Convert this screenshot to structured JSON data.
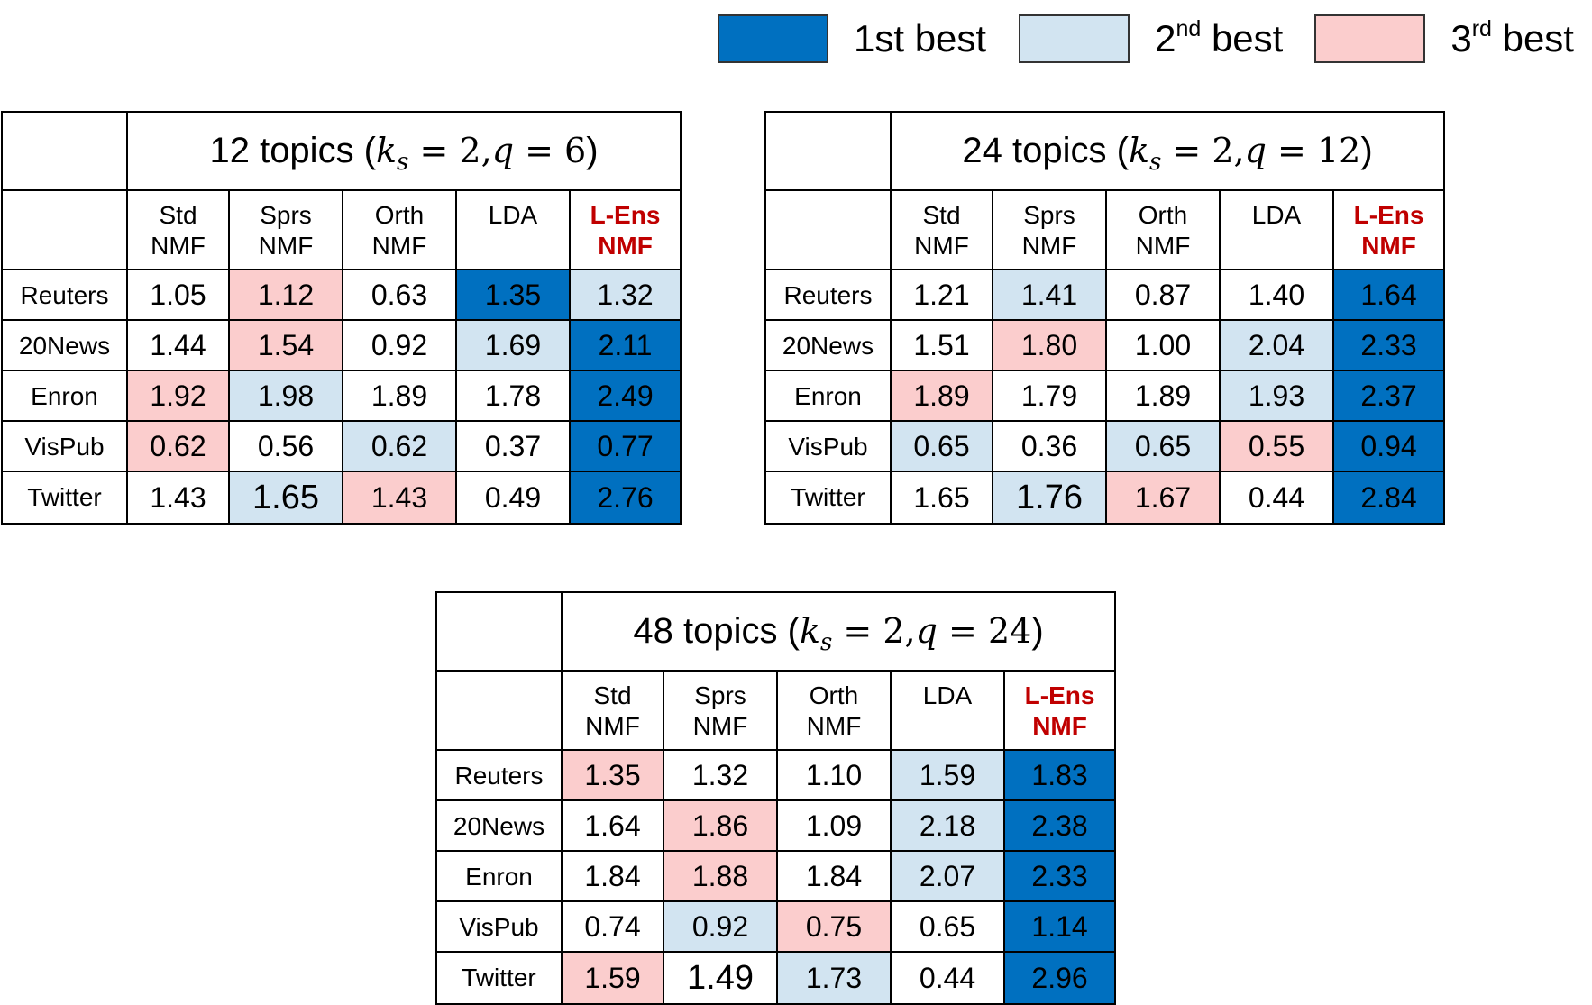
{
  "legend": [
    {
      "num": "1",
      "sup": "st",
      "label": "best",
      "color": "#0070c0"
    },
    {
      "num": "2",
      "sup": "nd",
      "label": "best",
      "color": "#d2e4f1"
    },
    {
      "num": "3",
      "sup": "rd",
      "label": "best",
      "color": "#fbcdcd"
    }
  ],
  "colors": {
    "first": "#0070c0",
    "second": "#d2e4f1",
    "third": "#fbcdcd",
    "header_highlight": "#c00000"
  },
  "columns": [
    {
      "line1": "Std",
      "line2": "NMF"
    },
    {
      "line1": "Sprs",
      "line2": "NMF"
    },
    {
      "line1": "Orth",
      "line2": "NMF"
    },
    {
      "line1": "LDA",
      "line2": ""
    },
    {
      "line1": "L-Ens",
      "line2": "NMF"
    }
  ],
  "rows": [
    "Reuters",
    "20News",
    "Enron",
    "VisPub",
    "Twitter"
  ],
  "tables": [
    {
      "title_prefix": "12 topics (",
      "ks": "2",
      "q": "6",
      "title_suffix": ")",
      "values": [
        [
          "1.05",
          "1.12",
          "0.63",
          "1.35",
          "1.32"
        ],
        [
          "1.44",
          "1.54",
          "0.92",
          "1.69",
          "2.11"
        ],
        [
          "1.92",
          "1.98",
          "1.89",
          "1.78",
          "2.49"
        ],
        [
          "0.62",
          "0.56",
          "0.62",
          "0.37",
          "0.77"
        ],
        [
          "1.43",
          "1.65",
          "1.43",
          "0.49",
          "2.76"
        ]
      ],
      "ranks": [
        [
          0,
          3,
          0,
          1,
          2
        ],
        [
          0,
          3,
          0,
          2,
          1
        ],
        [
          3,
          2,
          0,
          0,
          1
        ],
        [
          3,
          0,
          2,
          0,
          1
        ],
        [
          0,
          2,
          3,
          0,
          1
        ]
      ]
    },
    {
      "title_prefix": "24 topics (",
      "ks": "2",
      "q": "12",
      "title_suffix": ")",
      "values": [
        [
          "1.21",
          "1.41",
          "0.87",
          "1.40",
          "1.64"
        ],
        [
          "1.51",
          "1.80",
          "1.00",
          "2.04",
          "2.33"
        ],
        [
          "1.89",
          "1.79",
          "1.89",
          "1.93",
          "2.37"
        ],
        [
          "0.65",
          "0.36",
          "0.65",
          "0.55",
          "0.94"
        ],
        [
          "1.65",
          "1.76",
          "1.67",
          "0.44",
          "2.84"
        ]
      ],
      "ranks": [
        [
          0,
          2,
          0,
          0,
          1
        ],
        [
          0,
          3,
          0,
          2,
          1
        ],
        [
          3,
          0,
          0,
          2,
          1
        ],
        [
          2,
          0,
          2,
          3,
          1
        ],
        [
          0,
          2,
          3,
          0,
          1
        ]
      ]
    },
    {
      "title_prefix": "48 topics (",
      "ks": "2",
      "q": "24",
      "title_suffix": ")",
      "values": [
        [
          "1.35",
          "1.32",
          "1.10",
          "1.59",
          "1.83"
        ],
        [
          "1.64",
          "1.86",
          "1.09",
          "2.18",
          "2.38"
        ],
        [
          "1.84",
          "1.88",
          "1.84",
          "2.07",
          "2.33"
        ],
        [
          "0.74",
          "0.92",
          "0.75",
          "0.65",
          "1.14"
        ],
        [
          "1.59",
          "1.49",
          "1.73",
          "0.44",
          "2.96"
        ]
      ],
      "ranks": [
        [
          3,
          0,
          0,
          2,
          1
        ],
        [
          0,
          3,
          0,
          2,
          1
        ],
        [
          0,
          3,
          0,
          2,
          1
        ],
        [
          0,
          2,
          3,
          0,
          1
        ],
        [
          3,
          0,
          2,
          0,
          1
        ]
      ]
    }
  ]
}
